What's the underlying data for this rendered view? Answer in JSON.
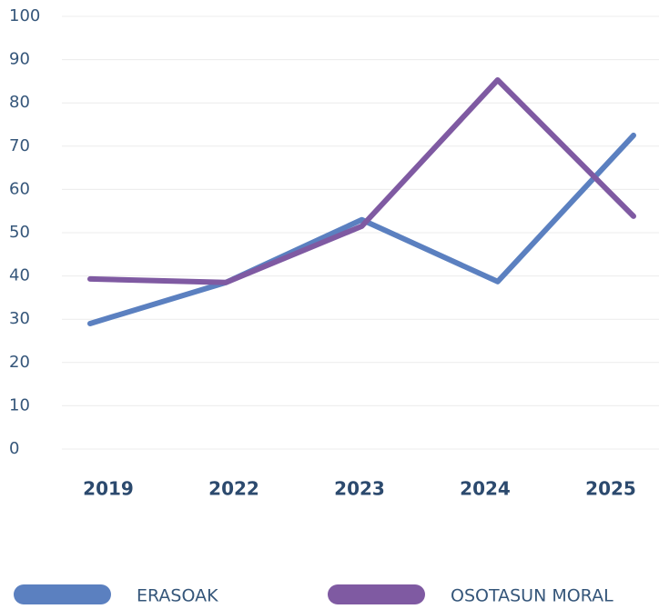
{
  "chart_data": {
    "type": "line",
    "categories": [
      "2019",
      "2022",
      "2023",
      "2024",
      "2025"
    ],
    "series": [
      {
        "name": "ERASOAK",
        "color": "#5b80c0",
        "values": [
          29,
          38.5,
          53,
          38.7,
          72.5
        ]
      },
      {
        "name": "OSOTASUN MORAL",
        "color": "#7f5aa2",
        "values": [
          39.3,
          38.5,
          51.5,
          85.3,
          53.8
        ]
      }
    ],
    "ylim": [
      0,
      100
    ],
    "yticks": [
      0,
      10,
      20,
      30,
      40,
      50,
      60,
      70,
      80,
      90,
      100
    ],
    "grid": true,
    "legend": "bottom"
  }
}
